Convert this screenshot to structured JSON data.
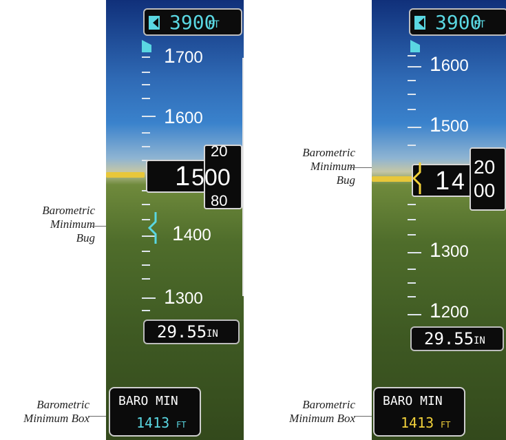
{
  "callouts": {
    "bug_left": [
      "Barometric",
      "Minimum",
      "Bug"
    ],
    "box_left": [
      "Barometric",
      "Minimum Box"
    ],
    "bug_right": [
      "Barometric",
      "Minimum",
      "Bug"
    ],
    "box_right": [
      "Barometric",
      "Minimum Box"
    ]
  },
  "left_panel": {
    "selected_altitude": {
      "value": "3900",
      "unit": "FT"
    },
    "tape_labels": [
      {
        "lead": "1",
        "rest": "700"
      },
      {
        "lead": "1",
        "rest": "600"
      },
      {
        "lead": "1",
        "rest": "400"
      },
      {
        "lead": "1",
        "rest": "300"
      }
    ],
    "current_altitude": {
      "lead": "1",
      "rest": "500",
      "roll_above": "20",
      "roll_below": "80"
    },
    "baro_setting": {
      "value": "29.55",
      "unit": "IN"
    },
    "baro_min": {
      "title": "BARO MIN",
      "value": "1413",
      "unit": "FT",
      "color": "#5ad7e2"
    },
    "bug_color": "#5ad7e2"
  },
  "right_panel": {
    "selected_altitude": {
      "value": "3900",
      "unit": "FT"
    },
    "tape_labels": [
      {
        "lead": "1",
        "rest": "600"
      },
      {
        "lead": "1",
        "rest": "500"
      },
      {
        "lead": "1",
        "rest": "300"
      },
      {
        "lead": "1",
        "rest": "200"
      }
    ],
    "current_altitude": {
      "lead": "1",
      "mid": "4",
      "roll_above": "20",
      "roll_below": "00"
    },
    "baro_setting": {
      "value": "29.55",
      "unit": "IN"
    },
    "baro_min": {
      "title": "BARO MIN",
      "value": "1413",
      "unit": "FT",
      "color": "#f2d13a"
    },
    "bug_color": "#f2d13a"
  }
}
